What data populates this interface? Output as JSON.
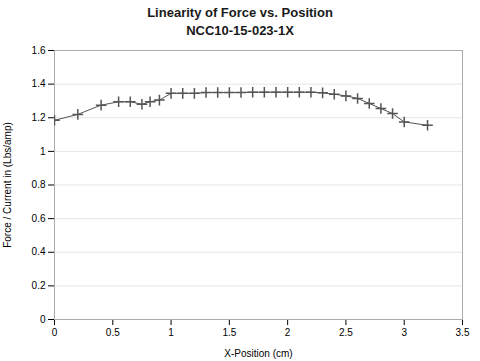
{
  "chart_data": {
    "type": "line",
    "title": "Linearity of Force vs. Position",
    "subtitle": "NCC10-15-023-1X",
    "x_label": "X-Position (cm)",
    "y_label": "Force / Current in (Lbs/amp)",
    "x": [
      0.0,
      0.2,
      0.4,
      0.55,
      0.65,
      0.75,
      0.82,
      0.9,
      1.0,
      1.1,
      1.2,
      1.3,
      1.4,
      1.5,
      1.6,
      1.7,
      1.8,
      1.9,
      2.0,
      2.1,
      2.2,
      2.3,
      2.4,
      2.5,
      2.6,
      2.7,
      2.8,
      2.9,
      3.0,
      3.2
    ],
    "values": [
      1.185,
      1.22,
      1.275,
      1.295,
      1.295,
      1.28,
      1.295,
      1.305,
      1.345,
      1.345,
      1.345,
      1.35,
      1.35,
      1.35,
      1.35,
      1.352,
      1.352,
      1.352,
      1.352,
      1.352,
      1.352,
      1.348,
      1.34,
      1.33,
      1.315,
      1.285,
      1.255,
      1.225,
      1.175,
      1.155
    ],
    "color": "#555555",
    "marker": "plus",
    "xlim": [
      0,
      3.5
    ],
    "xticks": [
      0,
      0.5,
      1,
      1.5,
      2,
      2.5,
      3,
      3.5
    ],
    "ylim": [
      0,
      1.6
    ],
    "yticks": [
      0,
      0.2,
      0.4,
      0.6,
      0.8,
      1,
      1.2,
      1.4,
      1.6
    ],
    "grid": "y"
  }
}
